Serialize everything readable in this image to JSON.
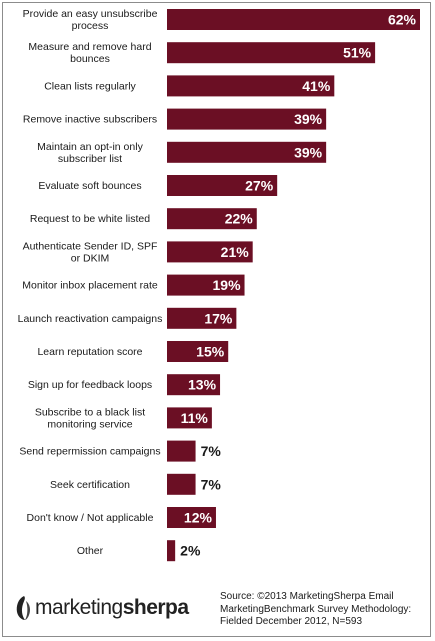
{
  "colors": {
    "bar": "#6b0f24",
    "bar_label_light": "#ffffff",
    "bar_label_dark": "#1a1a1a",
    "logo": "#222222"
  },
  "chart_data": {
    "type": "bar",
    "orientation": "horizontal",
    "categories": [
      "Provide an easy unsubscribe process",
      "Measure and remove hard bounces",
      "Clean lists regularly",
      "Remove inactive subscribers",
      "Maintain an opt-in only subscriber list",
      "Evaluate soft bounces",
      "Request to be white listed",
      "Authenticate Sender ID, SPF or DKIM",
      "Monitor inbox placement rate",
      "Launch reactivation campaigns",
      "Learn reputation score",
      "Sign up for feedback loops",
      "Subscribe to a black list monitoring service",
      "Send repermission campaigns",
      "Seek certification",
      "Don't know / Not applicable",
      "Other"
    ],
    "category_lines": [
      [
        "Provide an easy unsubscribe",
        "process"
      ],
      [
        "Measure and remove hard",
        "bounces"
      ],
      [
        "Clean lists regularly"
      ],
      [
        "Remove inactive subscribers"
      ],
      [
        "Maintain an opt-in only",
        "subscriber list"
      ],
      [
        "Evaluate soft bounces"
      ],
      [
        "Request to be white listed"
      ],
      [
        "Authenticate Sender ID, SPF",
        "or DKIM"
      ],
      [
        "Monitor inbox placement rate"
      ],
      [
        "Launch reactivation campaigns"
      ],
      [
        "Learn reputation score"
      ],
      [
        "Sign up for feedback loops"
      ],
      [
        "Subscribe to a black list",
        "monitoring service"
      ],
      [
        "Send repermission campaigns"
      ],
      [
        "Seek certification"
      ],
      [
        "Don't know / Not applicable"
      ],
      [
        "Other"
      ]
    ],
    "values": [
      62,
      51,
      41,
      39,
      39,
      27,
      22,
      21,
      19,
      17,
      15,
      13,
      11,
      7,
      7,
      12,
      2
    ],
    "value_labels": [
      "62%",
      "51%",
      "41%",
      "39%",
      "39%",
      "27%",
      "22%",
      "21%",
      "19%",
      "17%",
      "15%",
      "13%",
      "11%",
      "7%",
      "7%",
      "12%",
      "2%"
    ],
    "xlim": [
      0,
      62
    ],
    "grid": false,
    "legend": "none"
  },
  "footer": {
    "source_lines": [
      "Source: ©2013 MarketingSherpa Email",
      "MarketingBenchmark Survey Methodology:",
      "Fielded December 2012, N=593"
    ],
    "logo_light": "marketing",
    "logo_bold": "sherpa",
    "logo_icon": "sherpa-mountain-logo-icon"
  }
}
